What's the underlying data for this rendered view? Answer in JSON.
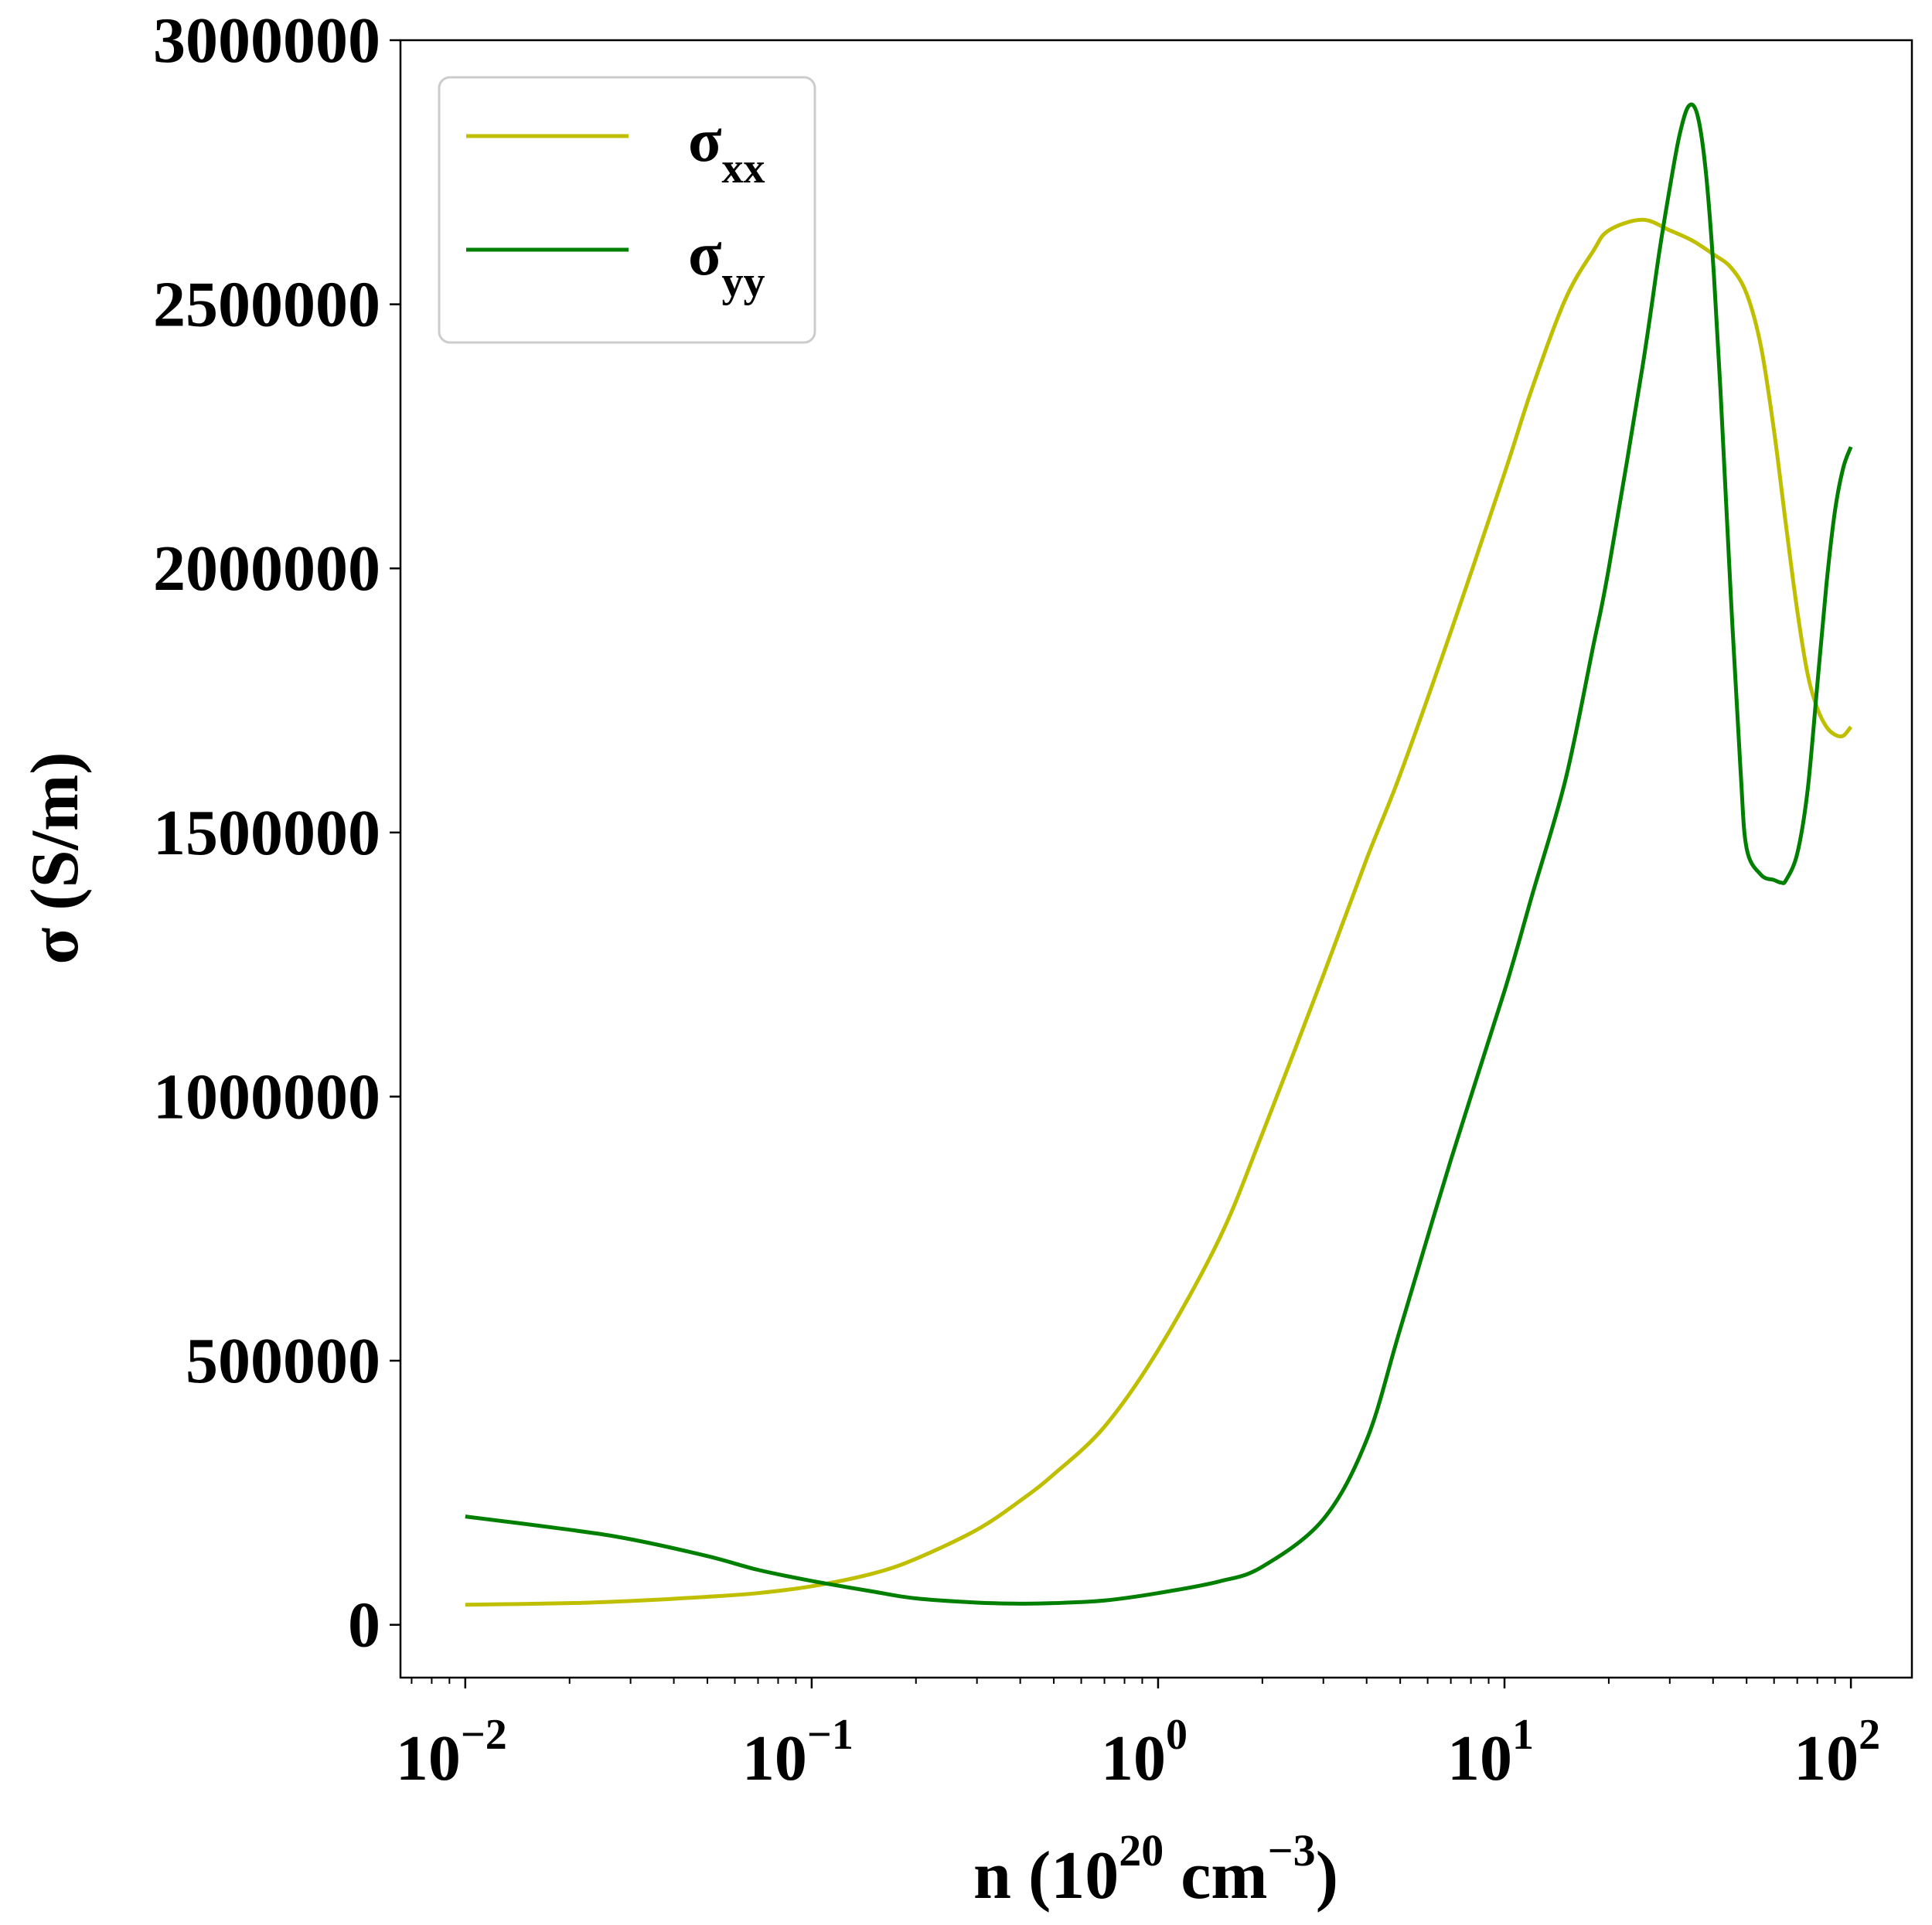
{
  "chart_data": {
    "type": "line",
    "title": "",
    "xlabel": "n (10^20 cm^-3)",
    "xlabel_parts": {
      "prefix": "n (10",
      "sup1": "20",
      "mid": " cm",
      "sup2": "−3",
      "suffix": ")"
    },
    "ylabel": "σ (S/m)",
    "xscale": "log",
    "xlim": [
      0.0065,
      150
    ],
    "ylim": [
      -100000,
      3000000
    ],
    "xticks": [
      {
        "value": 0.01,
        "base": "10",
        "exp": "−2"
      },
      {
        "value": 0.1,
        "base": "10",
        "exp": "−1"
      },
      {
        "value": 1,
        "base": "10",
        "exp": "0"
      },
      {
        "value": 10,
        "base": "10",
        "exp": "1"
      },
      {
        "value": 100,
        "base": "10",
        "exp": "2"
      }
    ],
    "yticks": [
      {
        "value": 0,
        "label": "0"
      },
      {
        "value": 500000,
        "label": "500000"
      },
      {
        "value": 1000000,
        "label": "1000000"
      },
      {
        "value": 1500000,
        "label": "1500000"
      },
      {
        "value": 2000000,
        "label": "2000000"
      },
      {
        "value": 2500000,
        "label": "2500000"
      },
      {
        "value": 3000000,
        "label": "3000000"
      }
    ],
    "grid": false,
    "legend": {
      "position": "top-left",
      "entries": [
        {
          "symbol": "σ",
          "sub": "xx"
        },
        {
          "symbol": "σ",
          "sub": "yy"
        }
      ]
    },
    "series": [
      {
        "name": "σxx",
        "color": "#bfbf00",
        "x": [
          0.01,
          0.02,
          0.03,
          0.05,
          0.07,
          0.1,
          0.15,
          0.2,
          0.3,
          0.4,
          0.5,
          0.7,
          1,
          1.5,
          2,
          3,
          4,
          5,
          7,
          10,
          12,
          15,
          18,
          20,
          25,
          30,
          35,
          40,
          45,
          50,
          55,
          60,
          65,
          70,
          75,
          80,
          85,
          90,
          95,
          100
        ],
        "y": [
          38000,
          41000,
          45000,
          53000,
          60000,
          73000,
          97000,
          125000,
          180000,
          235000,
          285000,
          375000,
          520000,
          730000,
          930000,
          1230000,
          1450000,
          1610000,
          1880000,
          2180000,
          2340000,
          2510000,
          2600000,
          2640000,
          2660000,
          2640000,
          2620000,
          2595000,
          2570000,
          2520000,
          2420000,
          2260000,
          2080000,
          1920000,
          1800000,
          1735000,
          1700000,
          1685000,
          1683000,
          1700000
        ]
      },
      {
        "name": "σyy",
        "color": "#007f00",
        "x": [
          0.01,
          0.02,
          0.03,
          0.05,
          0.07,
          0.1,
          0.15,
          0.2,
          0.3,
          0.4,
          0.5,
          0.7,
          1,
          1.5,
          2,
          3,
          4,
          5,
          7,
          10,
          12,
          15,
          18,
          20,
          25,
          28,
          30,
          32,
          34,
          36,
          38,
          40,
          42,
          45,
          48,
          50,
          55,
          60,
          63,
          65,
          70,
          75,
          80,
          85,
          90,
          95,
          100
        ],
        "y": [
          205000,
          180000,
          162000,
          130000,
          104000,
          83000,
          63000,
          50000,
          42000,
          40000,
          41000,
          46000,
          60000,
          82000,
          110000,
          200000,
          350000,
          560000,
          880000,
          1200000,
          1380000,
          1600000,
          1850000,
          2000000,
          2380000,
          2600000,
          2720000,
          2820000,
          2875000,
          2860000,
          2760000,
          2580000,
          2340000,
          1950000,
          1620000,
          1470000,
          1420000,
          1410000,
          1405000,
          1410000,
          1460000,
          1580000,
          1780000,
          1970000,
          2110000,
          2190000,
          2230000
        ]
      }
    ]
  }
}
